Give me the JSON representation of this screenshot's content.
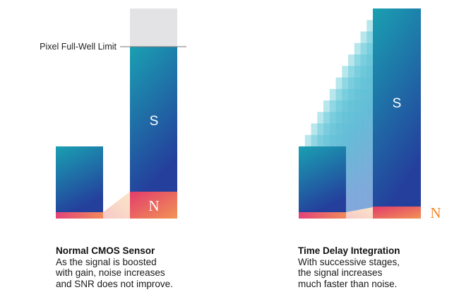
{
  "left_panel": {
    "limit_label": "Pixel Full-Well Limit",
    "signal_letter": "S",
    "noise_letter": "N",
    "title": "Normal CMOS Sensor",
    "description_lines": [
      "As the signal is boosted",
      "with gain, noise increases",
      "and SNR does not improve."
    ]
  },
  "right_panel": {
    "signal_letter": "S",
    "noise_letter": "N",
    "title": "Time Delay Integration",
    "description_lines": [
      "With successive stages,",
      "the signal increases",
      "much faster than noise."
    ],
    "stage_count": 11
  },
  "colors": {
    "signal_top": "#1aa0b2",
    "signal_bottom": "#243f9c",
    "noise_top": "#e23c6c",
    "noise_bottom": "#f08f55",
    "noise_letter": "#f08a2a",
    "limit_line": "#777777",
    "headroom": "#e3e3e5"
  }
}
